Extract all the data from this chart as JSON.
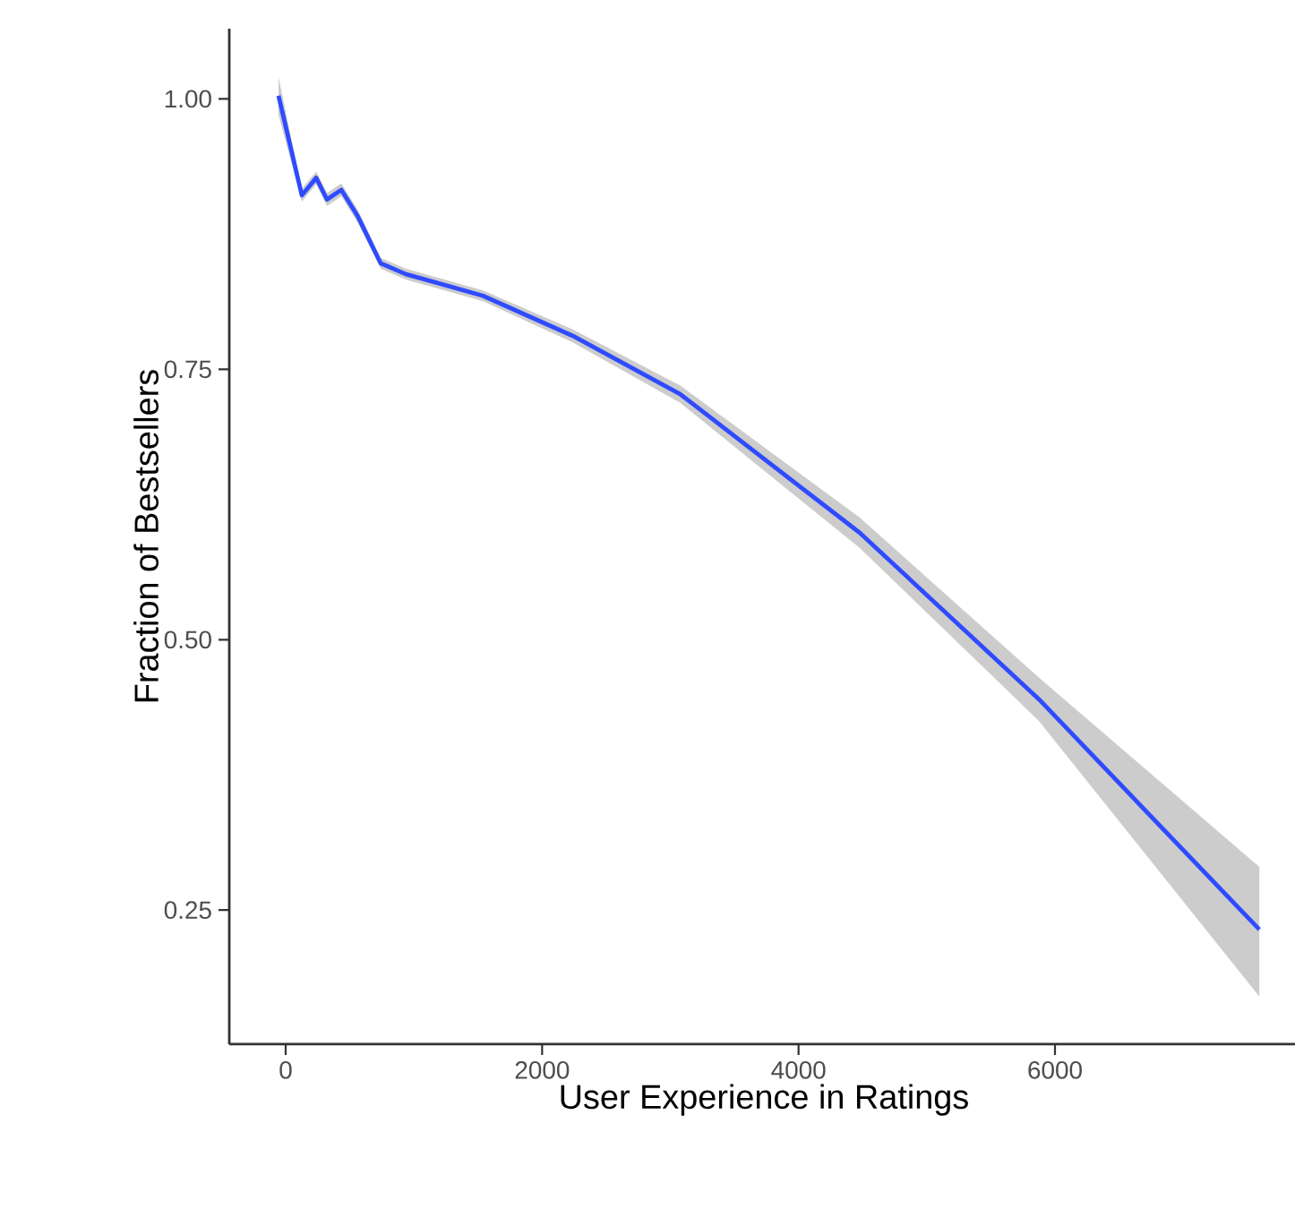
{
  "chart_data": {
    "type": "line",
    "xlabel": "User Experience in Ratings",
    "ylabel": "Fraction of Bestsellers",
    "x": [
      -56,
      126,
      238,
      322,
      434,
      560,
      741,
      937,
      1538,
      2238,
      3077,
      4476,
      5874,
      7594
    ],
    "series": [
      {
        "color": "#2f4bff",
        "values": [
          1.003,
          0.911,
          0.927,
          0.907,
          0.916,
          0.892,
          0.848,
          0.838,
          0.818,
          0.781,
          0.727,
          0.599,
          0.445,
          0.232
        ],
        "lower": [
          0.985,
          0.905,
          0.921,
          0.901,
          0.91,
          0.886,
          0.843,
          0.833,
          0.813,
          0.775,
          0.719,
          0.585,
          0.425,
          0.17
        ],
        "upper": [
          1.02,
          0.917,
          0.933,
          0.913,
          0.922,
          0.898,
          0.853,
          0.843,
          0.823,
          0.787,
          0.735,
          0.613,
          0.465,
          0.29
        ]
      }
    ],
    "xlim": [
      -440,
      7900
    ],
    "ylim": [
      0.126,
      1.065
    ],
    "xticks": [
      0,
      2000,
      4000,
      6000
    ],
    "yticks": [
      {
        "value": 0.25,
        "label": "0.25"
      },
      {
        "value": 0.5,
        "label": "0.50"
      },
      {
        "value": 0.75,
        "label": "0.75"
      },
      {
        "value": 1.0,
        "label": "1.00"
      }
    ]
  }
}
